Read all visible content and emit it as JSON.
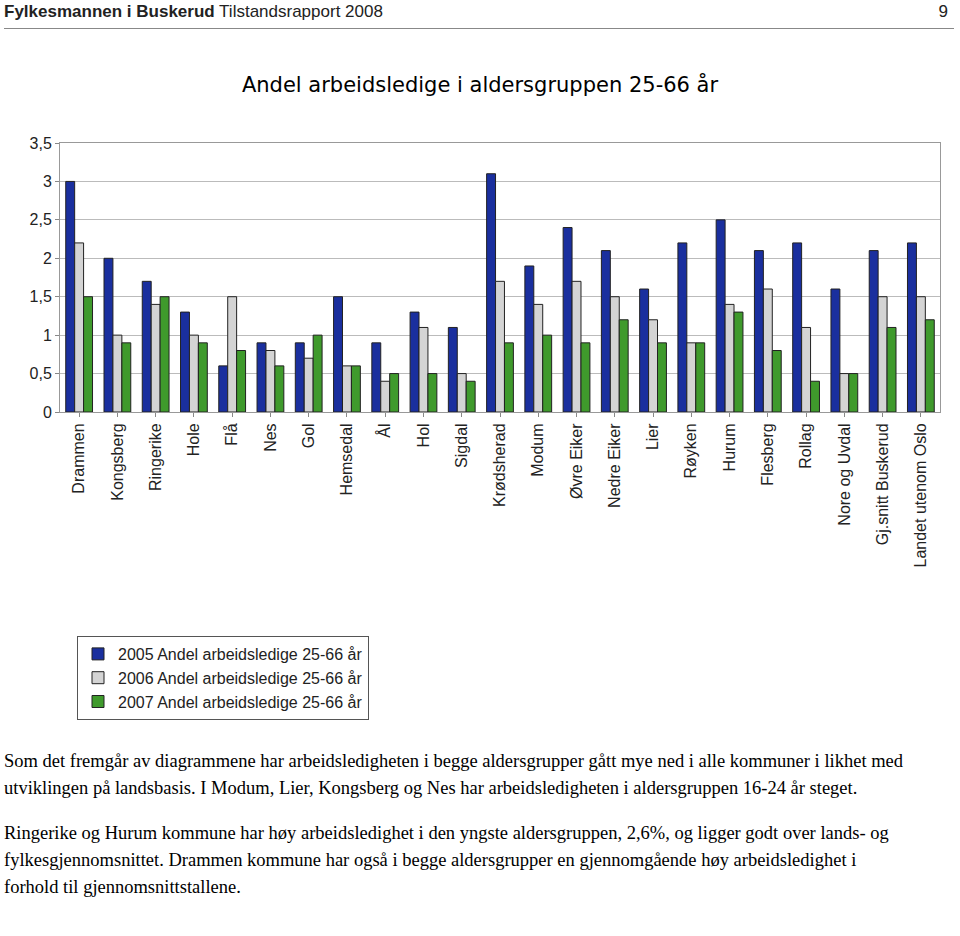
{
  "header": {
    "organization": "Fylkesmannen i Buskerud",
    "report": "Tilstandsrapport 2008",
    "page": 9
  },
  "chart_data": {
    "type": "bar",
    "title": "Andel arbeidsledige i aldersgruppen 25-66 år",
    "categories": [
      "Drammen",
      "Kongsberg",
      "Ringerike",
      "Hole",
      "Flå",
      "Nes",
      "Gol",
      "Hemsedal",
      "Ål",
      "Hol",
      "Sigdal",
      "Krødsherad",
      "Modum",
      "Øvre Eiker",
      "Nedre Eiker",
      "Lier",
      "Røyken",
      "Hurum",
      "Flesberg",
      "Rollag",
      "Nore og Uvdal",
      "Gj.snitt Buskerud",
      "Landet utenom Oslo"
    ],
    "series": [
      {
        "name": "2005 Andel arbeidsledige 25-66 år",
        "color": "#1a2f9e",
        "values": [
          3.0,
          2.0,
          1.7,
          1.3,
          0.6,
          0.9,
          0.9,
          1.5,
          0.9,
          1.3,
          1.1,
          3.1,
          1.9,
          2.4,
          2.1,
          1.6,
          2.2,
          2.5,
          2.1,
          2.2,
          1.6,
          2.1,
          2.2
        ]
      },
      {
        "name": "2006 Andel arbeidsledige 25-66 år",
        "color": "#d4d4d4",
        "values": [
          2.2,
          1.0,
          1.4,
          1.0,
          1.5,
          0.8,
          0.7,
          0.6,
          0.4,
          1.1,
          0.5,
          1.7,
          1.4,
          1.7,
          1.5,
          1.2,
          0.9,
          1.4,
          1.6,
          1.1,
          0.5,
          1.5,
          1.5
        ]
      },
      {
        "name": "2007 Andel arbeidsledige 25-66 år",
        "color": "#3f9a2c",
        "values": [
          1.5,
          0.9,
          1.5,
          0.9,
          0.8,
          0.6,
          1.0,
          0.6,
          0.5,
          0.5,
          0.4,
          0.9,
          1.0,
          0.9,
          1.2,
          0.9,
          0.9,
          1.3,
          0.8,
          0.4,
          0.5,
          1.1,
          1.2
        ]
      }
    ],
    "ylim": [
      0,
      3.5
    ],
    "yticks": [
      0,
      {
        "value": 0.5,
        "label": "0,5"
      },
      1,
      {
        "value": 1.5,
        "label": "1,5"
      },
      2,
      {
        "value": 2.5,
        "label": "2,5"
      },
      3,
      {
        "value": 3.5,
        "label": "3,5"
      }
    ],
    "grid": true,
    "legend": "bottom"
  },
  "paragraphs": [
    "Som det fremgår av diagrammene har arbeidsledigheten i begge aldersgrupper gått mye ned i alle kommuner i likhet med utviklingen på landsbasis. I Modum, Lier, Kongsberg og Nes har arbeidsledigheten i aldersgruppen 16-24 år steget.",
    "Ringerike og Hurum kommune har høy arbeidsledighet i den yngste aldersgruppen, 2,6%, og ligger godt over lands- og fylkesgjennomsnittet. Drammen kommune har også i begge aldersgrupper en gjennomgående høy arbeidsledighet i forhold til gjennomsnittstallene."
  ]
}
